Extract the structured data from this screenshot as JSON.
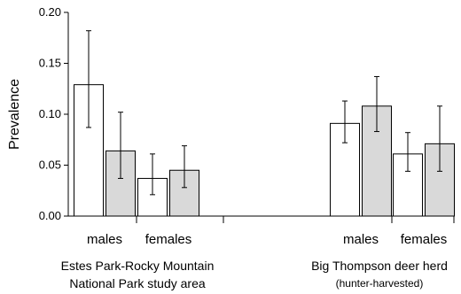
{
  "chart_data": {
    "type": "bar",
    "title": "",
    "ylabel": "Prevalence",
    "ylim": [
      0,
      0.2
    ],
    "yticks": [
      "0.00",
      "0.05",
      "0.10",
      "0.15",
      "0.20"
    ],
    "categories": [
      "males",
      "females",
      "males",
      "females"
    ],
    "groups": [
      {
        "label": "Estes Park-Rocky Mountain",
        "label2": "National Park study area",
        "sublabel": "",
        "categories": [
          0,
          1
        ]
      },
      {
        "label": "Big Thompson deer herd",
        "label2": "",
        "sublabel": "(hunter-harvested)",
        "categories": [
          2,
          3
        ]
      }
    ],
    "series": [
      {
        "color": "#ffffff",
        "values": [
          0.129,
          0.037,
          0.091,
          0.061
        ],
        "err_low": [
          0.087,
          0.021,
          0.072,
          0.044
        ],
        "err_high": [
          0.182,
          0.061,
          0.113,
          0.082
        ]
      },
      {
        "color": "#d9d9d9",
        "values": [
          0.064,
          0.045,
          0.108,
          0.071
        ],
        "err_low": [
          0.037,
          0.028,
          0.083,
          0.044
        ],
        "err_high": [
          0.102,
          0.069,
          0.137,
          0.108
        ]
      }
    ],
    "grid": false,
    "legend": "none"
  }
}
